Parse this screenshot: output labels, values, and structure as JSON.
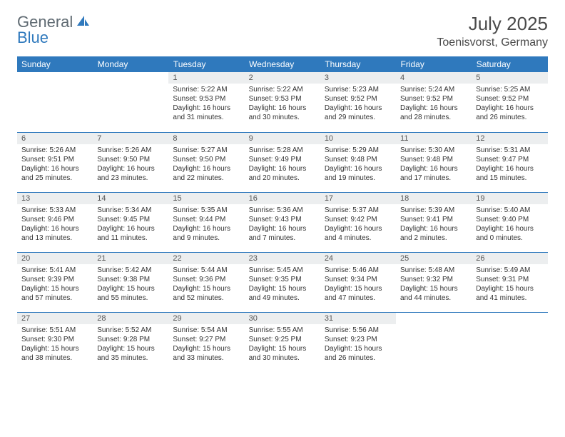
{
  "brand": {
    "part1": "General",
    "part2": "Blue"
  },
  "title": "July 2025",
  "location": "Toenisvorst, Germany",
  "colors": {
    "header_bg": "#2f79bd",
    "header_text": "#ffffff",
    "daynum_bg": "#eceeef",
    "text": "#333333",
    "border": "#2f79bd",
    "logo_gray": "#5f6a72",
    "logo_blue": "#2f79bd"
  },
  "typography": {
    "title_fontsize": 26,
    "location_fontsize": 16,
    "weekday_fontsize": 12,
    "daynum_fontsize": 11,
    "body_fontsize": 10
  },
  "weekdays": [
    "Sunday",
    "Monday",
    "Tuesday",
    "Wednesday",
    "Thursday",
    "Friday",
    "Saturday"
  ],
  "weeks": [
    [
      null,
      null,
      {
        "n": "1",
        "sr": "5:22 AM",
        "ss": "9:53 PM",
        "dl": "16 hours and 31 minutes."
      },
      {
        "n": "2",
        "sr": "5:22 AM",
        "ss": "9:53 PM",
        "dl": "16 hours and 30 minutes."
      },
      {
        "n": "3",
        "sr": "5:23 AM",
        "ss": "9:52 PM",
        "dl": "16 hours and 29 minutes."
      },
      {
        "n": "4",
        "sr": "5:24 AM",
        "ss": "9:52 PM",
        "dl": "16 hours and 28 minutes."
      },
      {
        "n": "5",
        "sr": "5:25 AM",
        "ss": "9:52 PM",
        "dl": "16 hours and 26 minutes."
      }
    ],
    [
      {
        "n": "6",
        "sr": "5:26 AM",
        "ss": "9:51 PM",
        "dl": "16 hours and 25 minutes."
      },
      {
        "n": "7",
        "sr": "5:26 AM",
        "ss": "9:50 PM",
        "dl": "16 hours and 23 minutes."
      },
      {
        "n": "8",
        "sr": "5:27 AM",
        "ss": "9:50 PM",
        "dl": "16 hours and 22 minutes."
      },
      {
        "n": "9",
        "sr": "5:28 AM",
        "ss": "9:49 PM",
        "dl": "16 hours and 20 minutes."
      },
      {
        "n": "10",
        "sr": "5:29 AM",
        "ss": "9:48 PM",
        "dl": "16 hours and 19 minutes."
      },
      {
        "n": "11",
        "sr": "5:30 AM",
        "ss": "9:48 PM",
        "dl": "16 hours and 17 minutes."
      },
      {
        "n": "12",
        "sr": "5:31 AM",
        "ss": "9:47 PM",
        "dl": "16 hours and 15 minutes."
      }
    ],
    [
      {
        "n": "13",
        "sr": "5:33 AM",
        "ss": "9:46 PM",
        "dl": "16 hours and 13 minutes."
      },
      {
        "n": "14",
        "sr": "5:34 AM",
        "ss": "9:45 PM",
        "dl": "16 hours and 11 minutes."
      },
      {
        "n": "15",
        "sr": "5:35 AM",
        "ss": "9:44 PM",
        "dl": "16 hours and 9 minutes."
      },
      {
        "n": "16",
        "sr": "5:36 AM",
        "ss": "9:43 PM",
        "dl": "16 hours and 7 minutes."
      },
      {
        "n": "17",
        "sr": "5:37 AM",
        "ss": "9:42 PM",
        "dl": "16 hours and 4 minutes."
      },
      {
        "n": "18",
        "sr": "5:39 AM",
        "ss": "9:41 PM",
        "dl": "16 hours and 2 minutes."
      },
      {
        "n": "19",
        "sr": "5:40 AM",
        "ss": "9:40 PM",
        "dl": "16 hours and 0 minutes."
      }
    ],
    [
      {
        "n": "20",
        "sr": "5:41 AM",
        "ss": "9:39 PM",
        "dl": "15 hours and 57 minutes."
      },
      {
        "n": "21",
        "sr": "5:42 AM",
        "ss": "9:38 PM",
        "dl": "15 hours and 55 minutes."
      },
      {
        "n": "22",
        "sr": "5:44 AM",
        "ss": "9:36 PM",
        "dl": "15 hours and 52 minutes."
      },
      {
        "n": "23",
        "sr": "5:45 AM",
        "ss": "9:35 PM",
        "dl": "15 hours and 49 minutes."
      },
      {
        "n": "24",
        "sr": "5:46 AM",
        "ss": "9:34 PM",
        "dl": "15 hours and 47 minutes."
      },
      {
        "n": "25",
        "sr": "5:48 AM",
        "ss": "9:32 PM",
        "dl": "15 hours and 44 minutes."
      },
      {
        "n": "26",
        "sr": "5:49 AM",
        "ss": "9:31 PM",
        "dl": "15 hours and 41 minutes."
      }
    ],
    [
      {
        "n": "27",
        "sr": "5:51 AM",
        "ss": "9:30 PM",
        "dl": "15 hours and 38 minutes."
      },
      {
        "n": "28",
        "sr": "5:52 AM",
        "ss": "9:28 PM",
        "dl": "15 hours and 35 minutes."
      },
      {
        "n": "29",
        "sr": "5:54 AM",
        "ss": "9:27 PM",
        "dl": "15 hours and 33 minutes."
      },
      {
        "n": "30",
        "sr": "5:55 AM",
        "ss": "9:25 PM",
        "dl": "15 hours and 30 minutes."
      },
      {
        "n": "31",
        "sr": "5:56 AM",
        "ss": "9:23 PM",
        "dl": "15 hours and 26 minutes."
      },
      null,
      null
    ]
  ],
  "labels": {
    "sunrise": "Sunrise:",
    "sunset": "Sunset:",
    "daylight": "Daylight:"
  }
}
